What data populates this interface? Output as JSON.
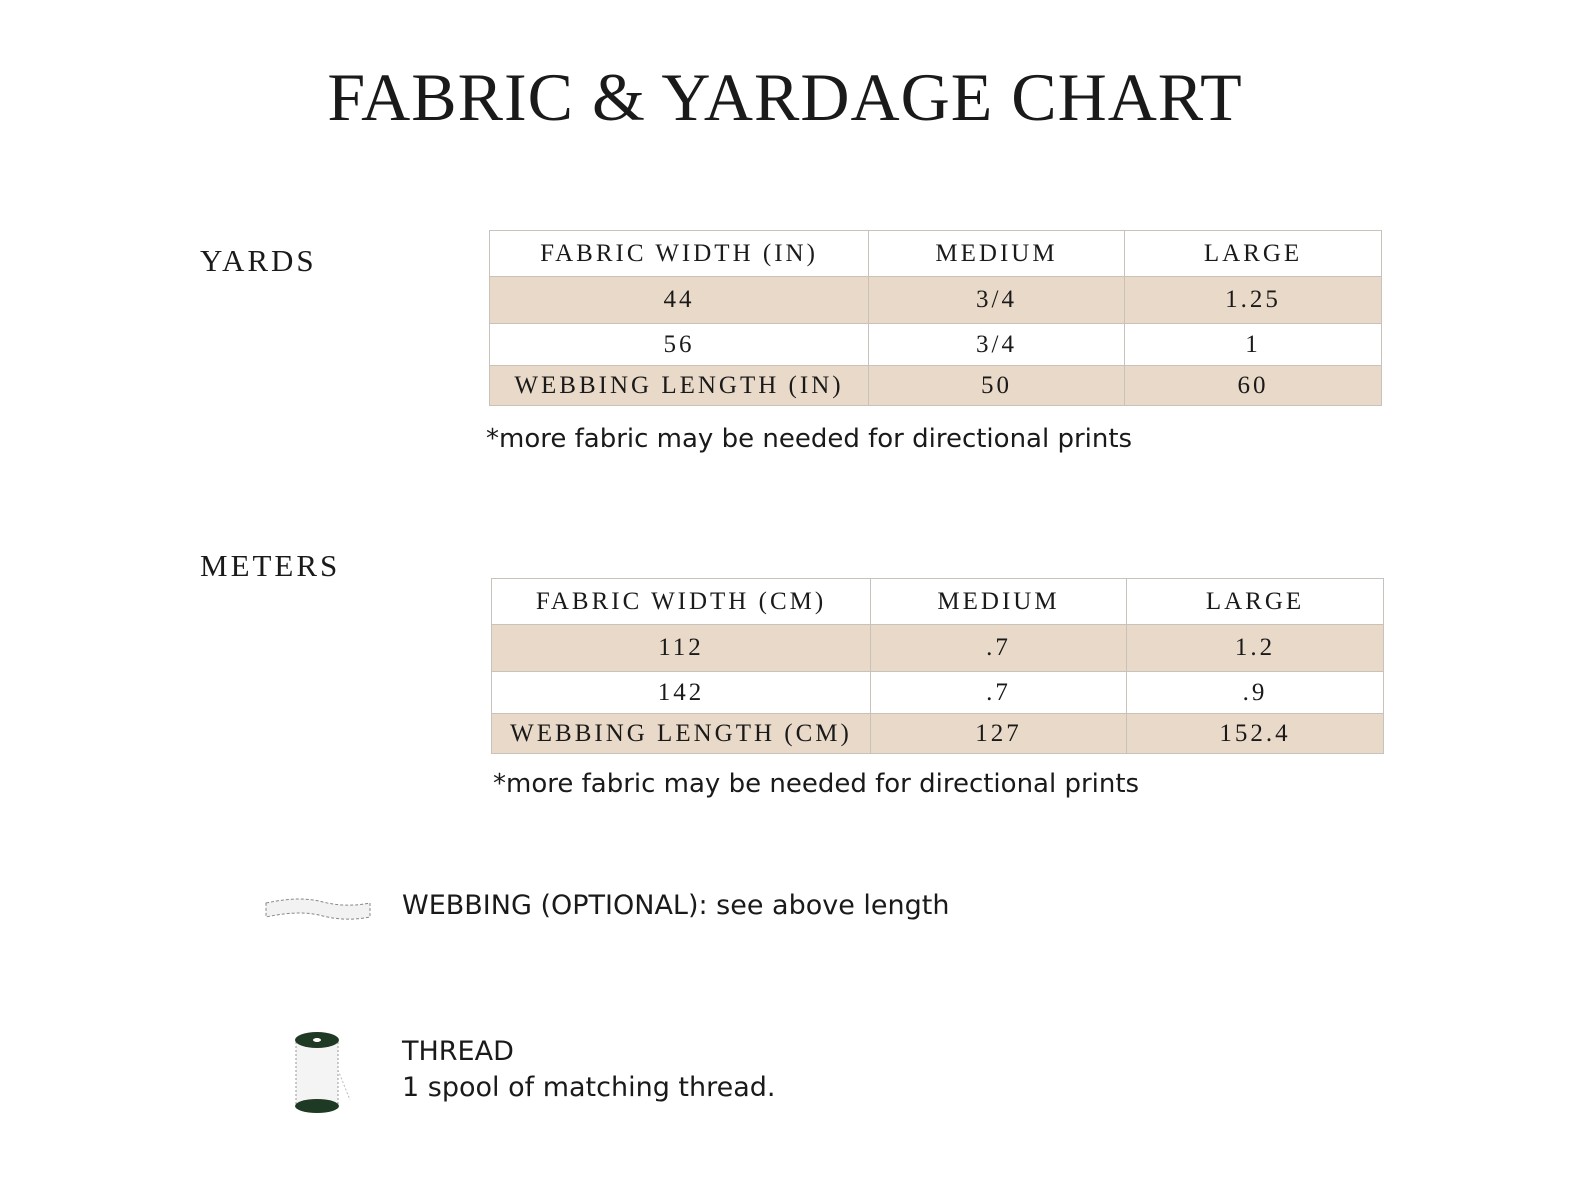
{
  "title": "FABRIC & YARDAGE CHART",
  "yards": {
    "label": "YARDS",
    "headers": [
      "FABRIC WIDTH (IN)",
      "MEDIUM",
      "LARGE"
    ],
    "rows": [
      [
        "44",
        "3/4",
        "1.25"
      ],
      [
        "56",
        "3/4",
        "1"
      ],
      [
        "WEBBING LENGTH (IN)",
        "50",
        "60"
      ]
    ],
    "note": "*more fabric may be needed for directional prints"
  },
  "meters": {
    "label": "METERS",
    "headers": [
      "FABRIC WIDTH (CM)",
      "MEDIUM",
      "LARGE"
    ],
    "rows": [
      [
        "112",
        ".7",
        "1.2"
      ],
      [
        "142",
        ".7",
        ".9"
      ],
      [
        "WEBBING LENGTH (CM)",
        "127",
        "152.4"
      ]
    ],
    "note": "*more fabric may be needed for directional prints"
  },
  "supplies": {
    "webbing": {
      "icon": "webbing-icon",
      "text": "WEBBING (OPTIONAL): see above length"
    },
    "thread": {
      "icon": "thread-spool-icon",
      "title": "THREAD",
      "text": "1 spool of matching thread."
    }
  },
  "colors": {
    "row_fill": "#e9d9c8",
    "spool": "#1f3a24"
  }
}
